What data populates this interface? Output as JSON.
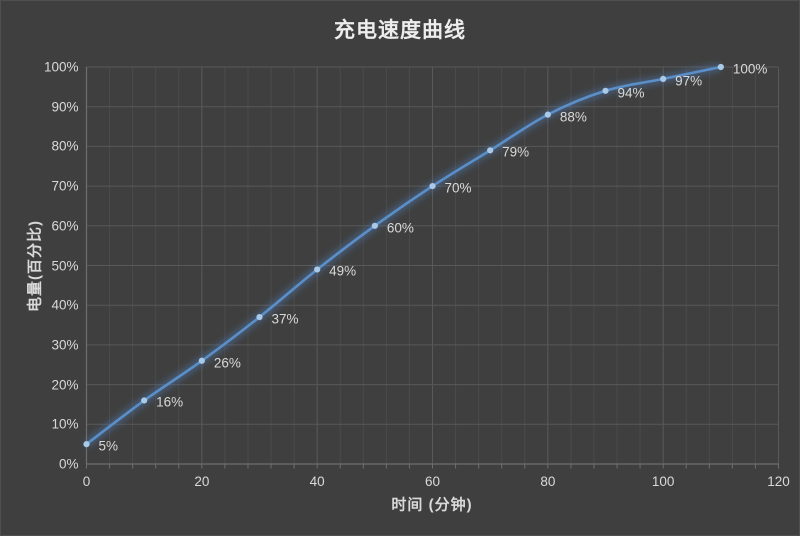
{
  "chart_data": {
    "type": "line",
    "title": "充电速度曲线",
    "xlabel": "时间 (分钟)",
    "ylabel": "电量(百分比)",
    "x": [
      0,
      10,
      20,
      30,
      40,
      50,
      60,
      70,
      80,
      90,
      100,
      110
    ],
    "values": [
      5,
      16,
      26,
      37,
      49,
      60,
      70,
      79,
      88,
      94,
      97,
      100
    ],
    "point_labels": [
      "5%",
      "16%",
      "26%",
      "37%",
      "49%",
      "60%",
      "70%",
      "79%",
      "88%",
      "94%",
      "97%",
      "100%"
    ],
    "series_count": 1,
    "legend": "none",
    "grid": "horizontal-major, vertical-major+minor",
    "xlim": [
      0,
      120
    ],
    "ylim": [
      0,
      100
    ],
    "x_major_unit": 20,
    "x_minor_unit": 4,
    "y_major_unit": 10,
    "x_tick_labels": [
      "0",
      "20",
      "40",
      "60",
      "80",
      "100",
      "120"
    ],
    "y_tick_labels": [
      "0%",
      "10%",
      "20%",
      "30%",
      "40%",
      "50%",
      "60%",
      "70%",
      "80%",
      "90%",
      "100%"
    ],
    "line_style": "smooth-with-glow",
    "colors": {
      "background": "#3f3f3f",
      "line": "#5b8fc9",
      "line_glow": "#4f7cb4",
      "marker": "#a9c9e8",
      "gridline_major": "#595959",
      "gridline_minor": "#4b4b4b",
      "axis_line": "#6e6e6e",
      "tick_text": "#d9d9d9",
      "title_text": "#ededed"
    }
  }
}
